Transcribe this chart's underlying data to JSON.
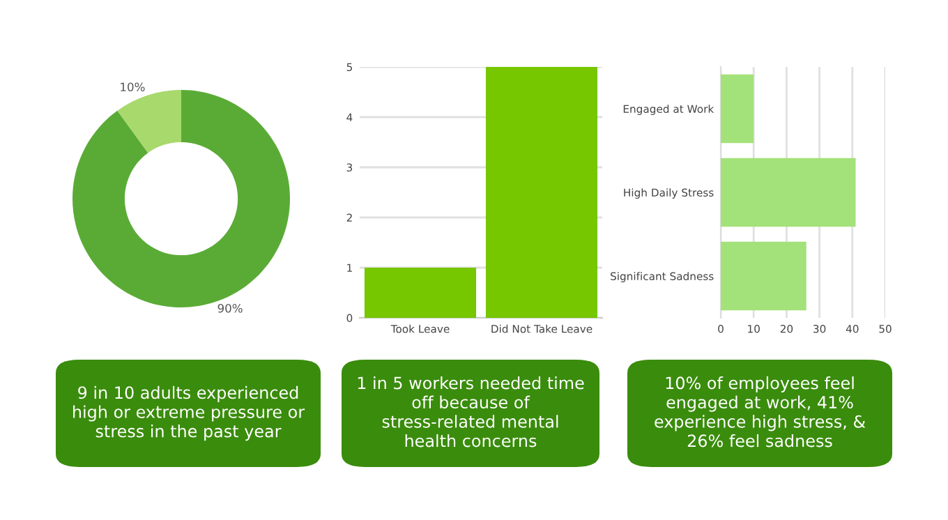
{
  "chart_data": [
    {
      "type": "donut",
      "categories": [
        null,
        null
      ],
      "values": [
        90,
        10
      ],
      "colors": [
        "#5aab36",
        "#a8d96c"
      ],
      "value_labels": [
        "90%",
        "10%"
      ],
      "annotations": [
        "9 in 10 adults experienced high or extreme pressure or stress in the past year"
      ]
    },
    {
      "type": "bar",
      "categories": [
        "Took Leave",
        "Did Not Take Leave"
      ],
      "values": [
        1,
        5
      ],
      "color": "#76c600",
      "ylim": [
        0,
        5
      ],
      "yticks": [
        0,
        1,
        2,
        3,
        4,
        5
      ],
      "grid": "y",
      "annotations": [
        "1 in 5 workers needed time off because of stress-related mental health concerns"
      ]
    },
    {
      "type": "bar",
      "orientation": "horizontal",
      "categories": [
        "Engaged at Work",
        "High Daily Stress",
        "Significant Sadness"
      ],
      "values": [
        10,
        41,
        26
      ],
      "color": "#a3e27a",
      "xlim": [
        0,
        50
      ],
      "xticks": [
        0,
        10,
        20,
        30,
        40,
        50
      ],
      "grid": "x",
      "annotations": [
        "10% of employees feel engaged at work, 41% experience high stress, & 26% feel sadness"
      ]
    }
  ]
}
